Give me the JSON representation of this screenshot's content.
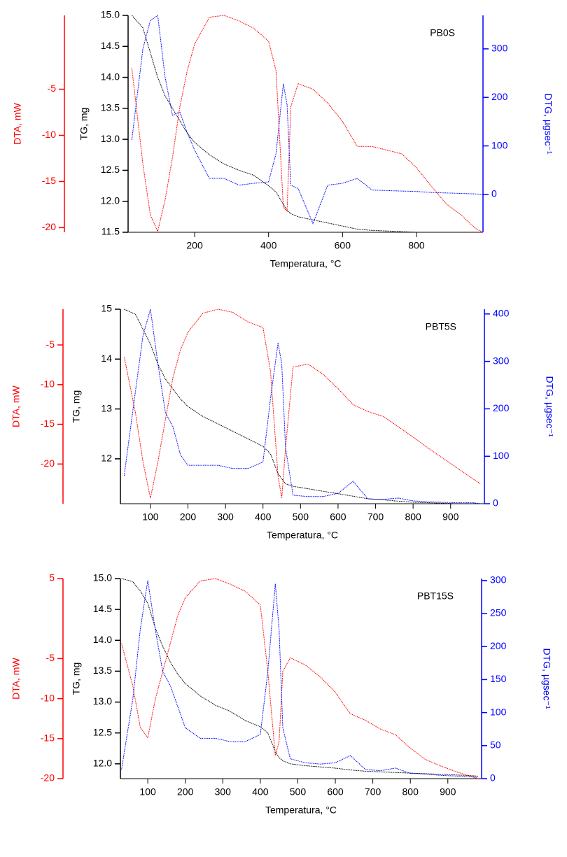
{
  "chart_data": [
    {
      "type": "line",
      "label": "PB0S",
      "xlabel": "Temperatura, °C",
      "ylabel": "TG, mg",
      "y2label": "DTG, µgsec⁻¹",
      "y3label": "DTA, mW",
      "xlim": [
        20,
        980
      ],
      "xticks": [
        200,
        400,
        600,
        800
      ],
      "ylim": [
        11.5,
        15.0
      ],
      "yticks": [
        11.5,
        {
          "value": 12,
          "label": "12.0"
        },
        12.5,
        {
          "value": 13,
          "label": "13.0"
        },
        13.5,
        {
          "value": 14,
          "label": "14.0"
        },
        14.5,
        {
          "value": 15,
          "label": "15.0"
        }
      ],
      "y2lim": [
        -78,
        369
      ],
      "y2ticks": [
        0,
        100,
        200,
        300
      ],
      "y3lim": [
        -20.5,
        3
      ],
      "y3ticks": [
        -5,
        -10,
        -15,
        -20
      ],
      "x": [
        30,
        60,
        80,
        100,
        120,
        140,
        160,
        180,
        200,
        240,
        280,
        320,
        360,
        400,
        420,
        440,
        450,
        460,
        480,
        520,
        560,
        600,
        640,
        680,
        720,
        760,
        800,
        840,
        880,
        920,
        960,
        980
      ],
      "series": [
        {
          "axis": "y",
          "color": "#000000",
          "values": [
            15.0,
            14.8,
            14.4,
            14.0,
            13.7,
            13.5,
            13.3,
            13.1,
            12.95,
            12.75,
            12.6,
            12.5,
            12.42,
            12.25,
            12.15,
            11.95,
            11.85,
            11.8,
            11.75,
            11.7,
            11.65,
            11.6,
            11.55,
            11.53,
            11.52,
            11.51,
            11.5,
            11.5,
            11.5,
            11.5,
            11.5,
            11.5
          ]
        },
        {
          "axis": "y3",
          "color": "#ff0000",
          "values": [
            -2.7,
            -13.1,
            -18.6,
            -20.4,
            -17.0,
            -12.4,
            -6.9,
            -3.0,
            -0.1,
            2.8,
            3.0,
            2.4,
            1.6,
            0.2,
            -3.0,
            -17.8,
            -18.2,
            -6.9,
            -4.4,
            -5.0,
            -6.5,
            -8.5,
            -11.2,
            -11.2,
            -11.6,
            -12.0,
            -13.5,
            -15.5,
            -17.4,
            -18.6,
            -20.1,
            -20.5
          ]
        },
        {
          "axis": "y2",
          "color": "#0000ff",
          "values": [
            112,
            300,
            358,
            369,
            242,
            163,
            170,
            127,
            91,
            33,
            33,
            19,
            23,
            26,
            84,
            228,
            185,
            19,
            12,
            -60,
            19,
            23,
            33,
            9,
            8,
            7,
            6,
            4,
            3,
            2,
            1,
            0
          ]
        }
      ]
    },
    {
      "type": "line",
      "label": "PBT5S",
      "xlabel": "Temperatura, °C",
      "ylabel": "TG, mg",
      "y2label": "DTG, µgsec⁻¹",
      "y3label": "DTA, mW",
      "xlim": [
        20,
        990
      ],
      "xticks": [
        100,
        200,
        300,
        400,
        500,
        600,
        700,
        800,
        900
      ],
      "ylim": [
        11.1,
        15
      ],
      "yticks": [
        12,
        13,
        14,
        15
      ],
      "y2lim": [
        0,
        410
      ],
      "y2ticks": [
        0,
        100,
        200,
        300,
        400
      ],
      "y3lim": [
        -25,
        -0.5
      ],
      "y3ticks": [
        -5,
        -10,
        -15,
        -20
      ],
      "x": [
        30,
        60,
        80,
        100,
        120,
        140,
        160,
        180,
        200,
        240,
        280,
        320,
        360,
        400,
        420,
        440,
        450,
        460,
        480,
        520,
        560,
        600,
        640,
        680,
        720,
        760,
        800,
        840,
        880,
        920,
        960,
        980
      ],
      "series": [
        {
          "axis": "y",
          "color": "#000000",
          "values": [
            15,
            14.9,
            14.6,
            14.3,
            13.9,
            13.6,
            13.4,
            13.2,
            13.05,
            12.85,
            12.7,
            12.55,
            12.4,
            12.25,
            12.1,
            11.7,
            11.6,
            11.5,
            11.45,
            11.4,
            11.35,
            11.3,
            11.25,
            11.2,
            11.18,
            11.15,
            11.13,
            11.12,
            11.11,
            11.1,
            11.1,
            11.1
          ]
        },
        {
          "axis": "y3",
          "color": "#ff0000",
          "values": [
            -6.5,
            -13.5,
            -19.7,
            -24.3,
            -19.7,
            -14.4,
            -9.1,
            -5.6,
            -3.4,
            -1.0,
            -0.5,
            -0.9,
            -2.1,
            -2.8,
            -8.3,
            -21.5,
            -24.3,
            -18.0,
            -7.8,
            -7.4,
            -8.7,
            -10.5,
            -12.5,
            -13.4,
            -14.0,
            -15.3,
            -16.6,
            -18.0,
            -19.3,
            -20.6,
            -21.9,
            -22.5
          ]
        },
        {
          "axis": "y2",
          "color": "#0000ff",
          "values": [
            59,
            236,
            354,
            410,
            295,
            192,
            162,
            103,
            81,
            81,
            81,
            74,
            74,
            88,
            221,
            339,
            295,
            118,
            18,
            15,
            15,
            22,
            47,
            10,
            9,
            12,
            6,
            4,
            3,
            2,
            2,
            0
          ]
        }
      ]
    },
    {
      "type": "line",
      "label": "PBT15S",
      "xlabel": "Temperatura, °C",
      "ylabel": "TG, mg",
      "y2label": "DTG, µgsec⁻¹",
      "y3label": "DTA, mW",
      "xlim": [
        27,
        990
      ],
      "xticks": [
        100,
        200,
        300,
        400,
        500,
        600,
        700,
        800,
        900
      ],
      "ylim": [
        11.76,
        15.0
      ],
      "yticks": [
        {
          "value": 12,
          "label": "12.0"
        },
        12.5,
        {
          "value": 13,
          "label": "13.0"
        },
        13.5,
        {
          "value": 14,
          "label": "14.0"
        },
        14.5,
        {
          "value": 15,
          "label": "15.0"
        }
      ],
      "y2lim": [
        0,
        303
      ],
      "y2ticks": [
        0,
        50,
        100,
        150,
        200,
        250,
        300
      ],
      "y3lim": [
        -20,
        5
      ],
      "y3ticks": [
        5,
        -5,
        -10,
        -15,
        -20
      ],
      "x": [
        30,
        60,
        80,
        100,
        120,
        140,
        160,
        180,
        200,
        240,
        280,
        320,
        360,
        400,
        420,
        440,
        450,
        460,
        480,
        520,
        560,
        600,
        640,
        680,
        720,
        760,
        800,
        840,
        880,
        920,
        960,
        980
      ],
      "series": [
        {
          "axis": "y",
          "color": "#000000",
          "values": [
            15.0,
            14.95,
            14.8,
            14.6,
            14.2,
            13.9,
            13.65,
            13.45,
            13.3,
            13.1,
            12.95,
            12.85,
            12.7,
            12.6,
            12.5,
            12.2,
            12.1,
            12.05,
            12.0,
            11.97,
            11.95,
            11.93,
            11.9,
            11.88,
            11.87,
            11.86,
            11.85,
            11.84,
            11.83,
            11.82,
            11.81,
            11.8
          ]
        },
        {
          "axis": "y3",
          "color": "#ff0000",
          "values": [
            -3.1,
            -8.4,
            -13.6,
            -14.9,
            -10.1,
            -6.6,
            -3.1,
            0.4,
            2.6,
            4.7,
            5,
            4.3,
            3.4,
            1.7,
            -6.6,
            -17.1,
            -15.4,
            -6.6,
            -4.9,
            -5.8,
            -7.3,
            -9.2,
            -11.9,
            -12.7,
            -13.8,
            -14.5,
            -16.2,
            -17.6,
            -18.4,
            -19.1,
            -19.7,
            -20
          ]
        },
        {
          "axis": "y2",
          "color": "#0000ff",
          "values": [
            14,
            120,
            226,
            300,
            226,
            162,
            141,
            109,
            77,
            61,
            61,
            56,
            56,
            67,
            162,
            295,
            226,
            77,
            30,
            24,
            22,
            24,
            35,
            14,
            12,
            16,
            8,
            7,
            5,
            4,
            3,
            2
          ]
        }
      ]
    }
  ]
}
